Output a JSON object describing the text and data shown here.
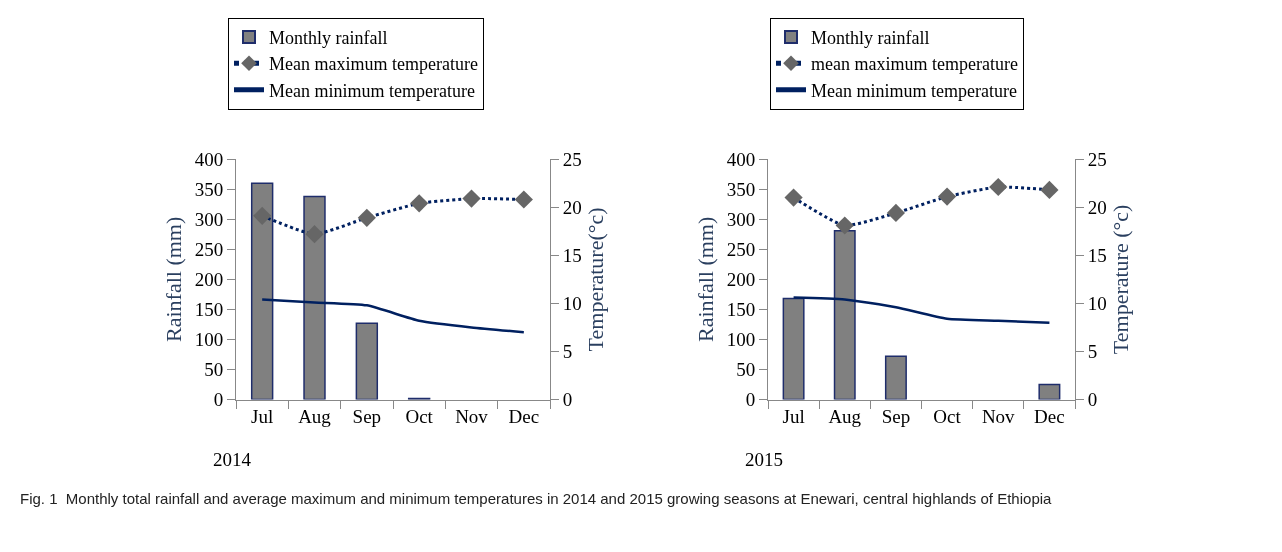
{
  "chart_data": [
    {
      "type": "bar",
      "categories": [
        "Jul",
        "Aug",
        "Sep",
        "Oct",
        "Nov",
        "Dec"
      ],
      "ylabel": "Rainfall (mm)",
      "y2label": "Temperature(°c)",
      "ylim": [
        0,
        400
      ],
      "yticks": [
        0,
        50,
        100,
        150,
        200,
        250,
        300,
        350,
        400
      ],
      "y2lim": [
        0,
        25
      ],
      "y2ticks": [
        0,
        5,
        10,
        15,
        20,
        25
      ],
      "legend": "top",
      "series": [
        {
          "name": "Monthly rainfall",
          "color": "#808080",
          "values": [
            360,
            338,
            127,
            2,
            0,
            0
          ]
        },
        {
          "name": "Mean maximum temperature",
          "type": "line",
          "axis": "y2",
          "color": "#002060",
          "marker": "diamond",
          "line_style": "dotted",
          "values": [
            19.1,
            17.2,
            18.9,
            20.4,
            20.9,
            20.8
          ]
        },
        {
          "name": "Mean minimum temperature",
          "type": "line",
          "axis": "y2",
          "color": "#002060",
          "marker": "none",
          "line_style": "solid",
          "values": [
            10.4,
            10.1,
            9.8,
            8.2,
            7.5,
            7.0
          ]
        }
      ],
      "annotations": [
        "2014",
        "Fig. 1  Monthly total rainfall and average maximum and minimum temperatures in 2014 and 2015 growing seasons at Enewari, central highlands of Ethiopia"
      ]
    },
    {
      "type": "bar",
      "categories": [
        "Jul",
        "Aug",
        "Sep",
        "Oct",
        "Nov",
        "Dec"
      ],
      "ylabel": "Rainfall (mm)",
      "y2label": "Temperature (°c)",
      "ylim": [
        0,
        400
      ],
      "yticks": [
        0,
        50,
        100,
        150,
        200,
        250,
        300,
        350,
        400
      ],
      "y2lim": [
        0,
        25
      ],
      "y2ticks": [
        0,
        5,
        10,
        15,
        20,
        25
      ],
      "legend": "top",
      "series": [
        {
          "name": "Monthly rainfall",
          "color": "#808080",
          "values": [
            168,
            281,
            72,
            0,
            0,
            25
          ]
        },
        {
          "name": "mean maximum temperature",
          "type": "line",
          "axis": "y2",
          "color": "#002060",
          "marker": "diamond",
          "line_style": "dotted",
          "values": [
            21.0,
            18.1,
            19.4,
            21.1,
            22.1,
            21.8
          ]
        },
        {
          "name": "Mean minimum temperature",
          "type": "line",
          "axis": "y2",
          "color": "#002060",
          "marker": "none",
          "line_style": "solid",
          "values": [
            10.6,
            10.4,
            9.6,
            8.4,
            8.2,
            8.0
          ]
        }
      ],
      "annotations": [
        "2015"
      ]
    }
  ]
}
